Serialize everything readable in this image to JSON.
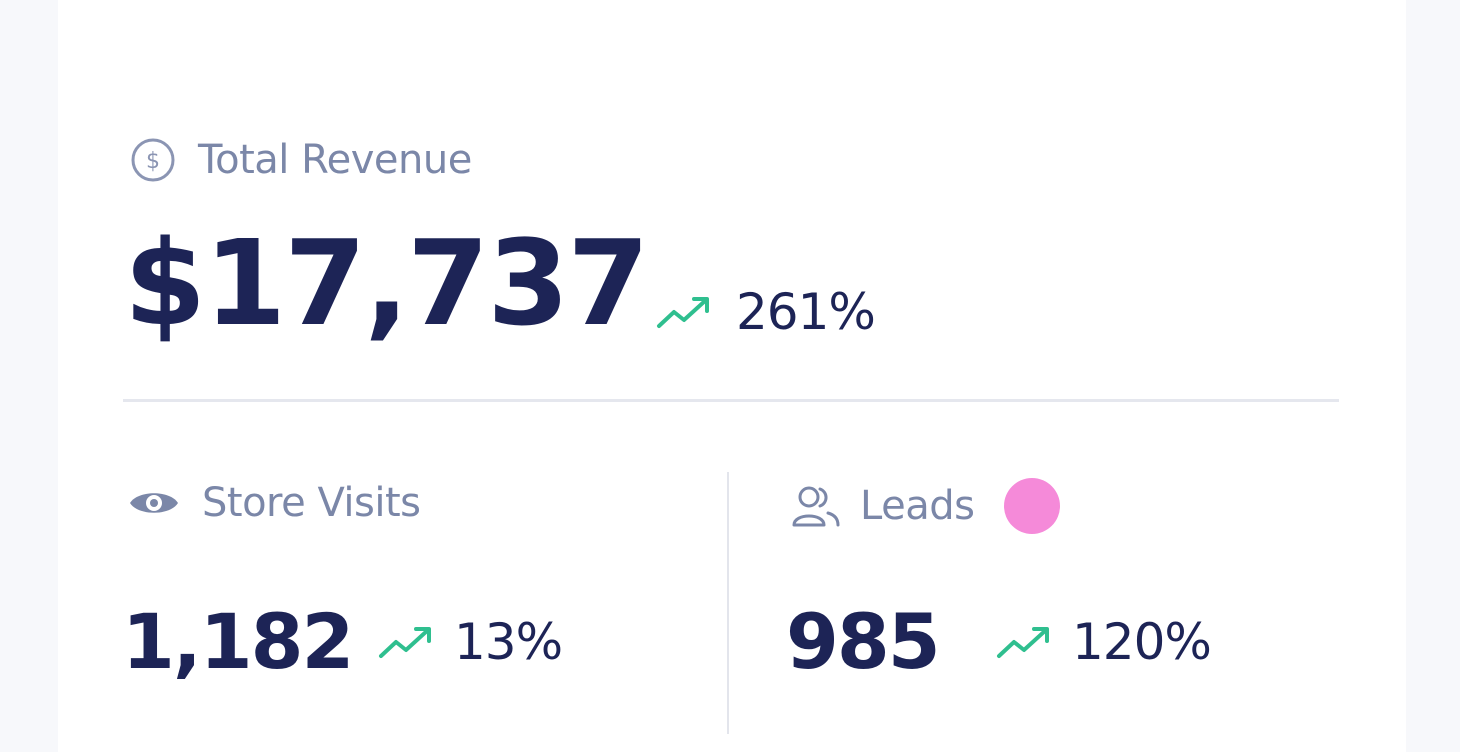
{
  "revenue": {
    "icon": "dollar-circle-icon",
    "label": "Total Revenue",
    "value": "$17,737",
    "change_icon": "trend-up-icon",
    "change": "261%"
  },
  "visits": {
    "icon": "eye-icon",
    "label": "Store Visits",
    "value": "1,182",
    "change_icon": "trend-up-icon",
    "change": "13%"
  },
  "leads": {
    "icon": "users-icon",
    "label": "Leads",
    "value": "985",
    "change_icon": "trend-up-icon",
    "change": "120%",
    "indicator_color": "#f58ad9"
  },
  "colors": {
    "label": "#7b87a8",
    "value": "#1d2456",
    "trend_up": "#2fbf8f",
    "indicator": "#f58ad9"
  }
}
